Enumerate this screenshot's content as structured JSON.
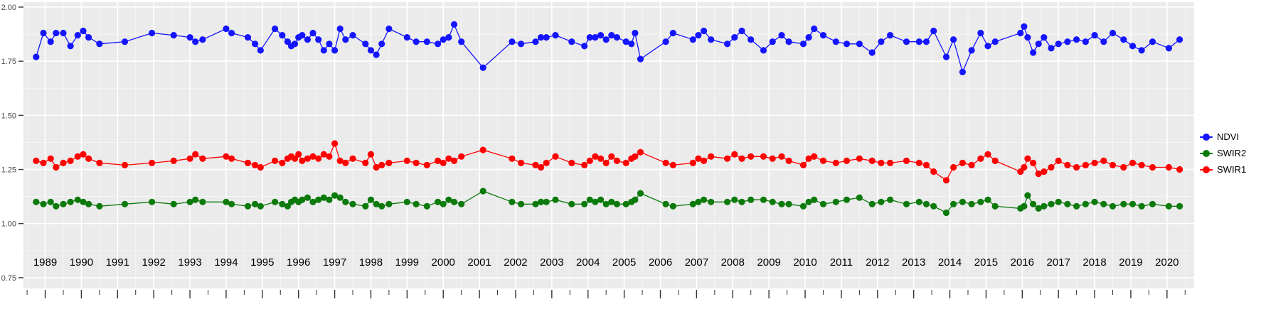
{
  "figure": {
    "background": "#FFFFFF",
    "panel_background": "#EBEBEB",
    "grid_major_color": "#FFFFFF",
    "grid_minor_color": "#F5F5F5",
    "axis_tick_color": "#333333",
    "axis_label_color": "#4A4A4A",
    "x_label_color": "#000000"
  },
  "legend": {
    "items": [
      {
        "label": "NDVI",
        "color": "#1414FF"
      },
      {
        "label": "SWIR2",
        "color": "#0B7A0B"
      },
      {
        "label": "SWIR1",
        "color": "#FF0000"
      }
    ]
  },
  "chart_data": {
    "type": "line",
    "title": "",
    "xlabel": "",
    "ylabel": "",
    "legend_position": "right",
    "grid": true,
    "xlim": [
      1988.4,
      2020.75
    ],
    "ylim": [
      0.75,
      2.0
    ],
    "x_ticks": [
      1989,
      1990,
      1991,
      1992,
      1993,
      1994,
      1995,
      1996,
      1997,
      1998,
      1999,
      2000,
      2001,
      2002,
      2003,
      2004,
      2005,
      2006,
      2007,
      2008,
      2009,
      2010,
      2011,
      2012,
      2013,
      2014,
      2015,
      2016,
      2017,
      2018,
      2019,
      2020
    ],
    "y_ticks": [
      "2.00",
      "1.75",
      "1.50",
      "1.25",
      "1.00",
      "0.75"
    ],
    "y_tick_values": [
      2.0,
      1.75,
      1.5,
      1.25,
      1.0,
      0.75
    ],
    "x": [
      1988.75,
      1988.95,
      1989.15,
      1989.3,
      1989.5,
      1989.7,
      1989.9,
      1990.05,
      1990.2,
      1990.5,
      1991.2,
      1991.95,
      1992.55,
      1993.0,
      1993.15,
      1993.35,
      1994.0,
      1994.15,
      1994.6,
      1994.8,
      1994.95,
      1995.35,
      1995.55,
      1995.7,
      1995.8,
      1995.9,
      1996.0,
      1996.1,
      1996.25,
      1996.4,
      1996.55,
      1996.7,
      1996.85,
      1997.0,
      1997.15,
      1997.3,
      1997.5,
      1997.85,
      1998.0,
      1998.15,
      1998.3,
      1998.5,
      1999.0,
      1999.25,
      1999.55,
      1999.85,
      2000.0,
      2000.15,
      2000.3,
      2000.5,
      2001.1,
      2001.9,
      2002.15,
      2002.55,
      2002.7,
      2002.85,
      2003.1,
      2003.55,
      2003.9,
      2004.05,
      2004.2,
      2004.35,
      2004.5,
      2004.65,
      2004.8,
      2005.05,
      2005.2,
      2005.3,
      2005.45,
      2006.15,
      2006.35,
      2006.9,
      2007.05,
      2007.2,
      2007.4,
      2007.85,
      2008.05,
      2008.25,
      2008.5,
      2008.85,
      2009.1,
      2009.35,
      2009.55,
      2009.95,
      2010.1,
      2010.25,
      2010.5,
      2010.85,
      2011.15,
      2011.5,
      2011.85,
      2012.1,
      2012.35,
      2012.8,
      2013.15,
      2013.35,
      2013.55,
      2013.9,
      2014.1,
      2014.35,
      2014.6,
      2014.85,
      2015.05,
      2015.25,
      2015.95,
      2016.05,
      2016.15,
      2016.3,
      2016.45,
      2016.6,
      2016.8,
      2017.0,
      2017.25,
      2017.5,
      2017.75,
      2018.0,
      2018.25,
      2018.5,
      2018.8,
      2019.05,
      2019.3,
      2019.6,
      2020.05,
      2020.35
    ],
    "series": [
      {
        "name": "NDVI",
        "color": "#1414FF",
        "values": [
          1.77,
          1.88,
          1.84,
          1.88,
          1.88,
          1.82,
          1.87,
          1.89,
          1.86,
          1.83,
          1.84,
          1.88,
          1.87,
          1.86,
          1.84,
          1.85,
          1.9,
          1.88,
          1.86,
          1.83,
          1.8,
          1.9,
          1.87,
          1.84,
          1.82,
          1.83,
          1.86,
          1.87,
          1.85,
          1.88,
          1.85,
          1.8,
          1.83,
          1.8,
          1.9,
          1.85,
          1.87,
          1.83,
          1.8,
          1.78,
          1.83,
          1.9,
          1.86,
          1.84,
          1.84,
          1.83,
          1.85,
          1.86,
          1.92,
          1.84,
          1.72,
          1.84,
          1.83,
          1.84,
          1.86,
          1.86,
          1.87,
          1.84,
          1.82,
          1.86,
          1.86,
          1.87,
          1.85,
          1.87,
          1.86,
          1.84,
          1.83,
          1.88,
          1.76,
          1.84,
          1.88,
          1.85,
          1.87,
          1.89,
          1.85,
          1.83,
          1.86,
          1.89,
          1.85,
          1.8,
          1.84,
          1.87,
          1.84,
          1.83,
          1.86,
          1.9,
          1.87,
          1.84,
          1.83,
          1.83,
          1.79,
          1.84,
          1.87,
          1.84,
          1.84,
          1.84,
          1.89,
          1.77,
          1.85,
          1.7,
          1.8,
          1.88,
          1.82,
          1.84,
          1.88,
          1.91,
          1.86,
          1.79,
          1.83,
          1.86,
          1.81,
          1.83,
          1.84,
          1.85,
          1.84,
          1.87,
          1.84,
          1.88,
          1.85,
          1.82,
          1.8,
          1.84,
          1.81,
          1.85
        ]
      },
      {
        "name": "SWIR2",
        "color": "#0B7A0B",
        "values": [
          1.1,
          1.09,
          1.1,
          1.08,
          1.09,
          1.1,
          1.11,
          1.1,
          1.09,
          1.08,
          1.09,
          1.1,
          1.09,
          1.1,
          1.11,
          1.1,
          1.1,
          1.09,
          1.08,
          1.09,
          1.08,
          1.1,
          1.09,
          1.08,
          1.1,
          1.11,
          1.1,
          1.11,
          1.12,
          1.1,
          1.11,
          1.12,
          1.11,
          1.13,
          1.12,
          1.1,
          1.09,
          1.08,
          1.11,
          1.09,
          1.08,
          1.09,
          1.1,
          1.09,
          1.08,
          1.1,
          1.09,
          1.11,
          1.1,
          1.09,
          1.15,
          1.1,
          1.09,
          1.09,
          1.1,
          1.1,
          1.11,
          1.09,
          1.09,
          1.11,
          1.1,
          1.11,
          1.09,
          1.1,
          1.09,
          1.09,
          1.1,
          1.11,
          1.14,
          1.09,
          1.08,
          1.09,
          1.1,
          1.11,
          1.1,
          1.1,
          1.11,
          1.1,
          1.11,
          1.11,
          1.1,
          1.09,
          1.09,
          1.08,
          1.1,
          1.11,
          1.09,
          1.1,
          1.11,
          1.12,
          1.09,
          1.1,
          1.11,
          1.09,
          1.1,
          1.09,
          1.08,
          1.05,
          1.09,
          1.1,
          1.09,
          1.1,
          1.11,
          1.08,
          1.07,
          1.08,
          1.13,
          1.09,
          1.07,
          1.08,
          1.09,
          1.1,
          1.09,
          1.08,
          1.09,
          1.1,
          1.09,
          1.08,
          1.09,
          1.09,
          1.08,
          1.09,
          1.08,
          1.08
        ]
      },
      {
        "name": "SWIR1",
        "color": "#FF0000",
        "values": [
          1.29,
          1.28,
          1.3,
          1.26,
          1.28,
          1.29,
          1.31,
          1.32,
          1.3,
          1.28,
          1.27,
          1.28,
          1.29,
          1.3,
          1.32,
          1.3,
          1.31,
          1.3,
          1.28,
          1.27,
          1.26,
          1.29,
          1.28,
          1.3,
          1.31,
          1.3,
          1.32,
          1.29,
          1.3,
          1.31,
          1.3,
          1.32,
          1.31,
          1.37,
          1.29,
          1.28,
          1.3,
          1.28,
          1.32,
          1.26,
          1.27,
          1.28,
          1.29,
          1.28,
          1.27,
          1.29,
          1.28,
          1.3,
          1.29,
          1.31,
          1.34,
          1.3,
          1.28,
          1.27,
          1.26,
          1.28,
          1.31,
          1.28,
          1.27,
          1.29,
          1.31,
          1.3,
          1.28,
          1.31,
          1.29,
          1.28,
          1.3,
          1.31,
          1.33,
          1.28,
          1.27,
          1.28,
          1.3,
          1.29,
          1.31,
          1.3,
          1.32,
          1.3,
          1.31,
          1.31,
          1.3,
          1.31,
          1.29,
          1.27,
          1.3,
          1.31,
          1.29,
          1.28,
          1.29,
          1.3,
          1.29,
          1.28,
          1.28,
          1.29,
          1.28,
          1.27,
          1.24,
          1.2,
          1.26,
          1.28,
          1.27,
          1.3,
          1.32,
          1.29,
          1.24,
          1.26,
          1.3,
          1.28,
          1.23,
          1.24,
          1.26,
          1.29,
          1.27,
          1.26,
          1.27,
          1.28,
          1.29,
          1.27,
          1.26,
          1.28,
          1.27,
          1.26,
          1.26,
          1.25
        ]
      }
    ],
    "legend_order": [
      "NDVI",
      "SWIR2",
      "SWIR1"
    ]
  }
}
